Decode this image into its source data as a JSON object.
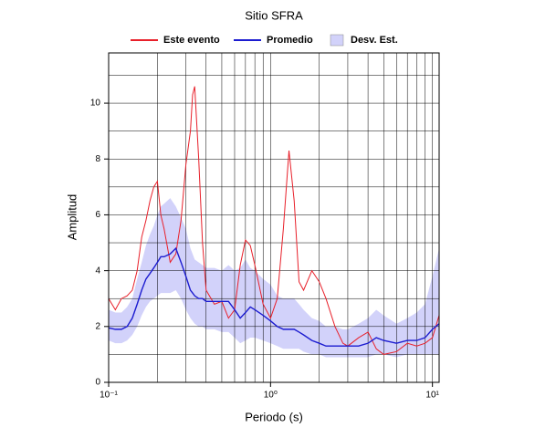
{
  "chart_data": {
    "type": "line",
    "title": "Sitio SFRA",
    "x_label": "Periodo (s)",
    "y_label": "Amplitud",
    "log_x": true,
    "grid": true,
    "legend": "top",
    "xlim": [
      0.1,
      11
    ],
    "ylim": [
      0,
      11.8
    ],
    "xticks": [
      {
        "value": 0.1,
        "label": "10⁻¹"
      },
      {
        "value": 1,
        "label": "10⁰"
      },
      {
        "value": 10,
        "label": "10¹"
      }
    ],
    "xminor": [
      0.2,
      0.3,
      0.4,
      0.5,
      0.6,
      0.7,
      0.8,
      0.9,
      2,
      3,
      4,
      5,
      6,
      7,
      8,
      9
    ],
    "yticks": [
      0,
      2,
      4,
      6,
      8,
      10
    ],
    "yminor": [
      1,
      3,
      5,
      7,
      9,
      11
    ],
    "x": [
      0.1,
      0.11,
      0.12,
      0.13,
      0.14,
      0.15,
      0.16,
      0.17,
      0.18,
      0.19,
      0.2,
      0.21,
      0.22,
      0.24,
      0.26,
      0.28,
      0.3,
      0.32,
      0.33,
      0.34,
      0.36,
      0.38,
      0.4,
      0.45,
      0.5,
      0.55,
      0.6,
      0.65,
      0.7,
      0.75,
      0.8,
      0.9,
      1.0,
      1.1,
      1.2,
      1.3,
      1.4,
      1.5,
      1.6,
      1.8,
      2.0,
      2.2,
      2.5,
      2.8,
      3.0,
      3.5,
      4.0,
      4.5,
      5.0,
      6.0,
      7.0,
      8.0,
      9.0,
      10.0,
      11.0
    ],
    "series": [
      {
        "name": "Este evento",
        "color": "#e8202a",
        "values": [
          3.0,
          2.6,
          3.0,
          3.1,
          3.3,
          4.0,
          5.2,
          5.8,
          6.5,
          7.0,
          7.2,
          6.0,
          5.5,
          4.3,
          4.6,
          5.8,
          7.8,
          9.0,
          10.3,
          10.6,
          8.0,
          5.0,
          3.3,
          2.8,
          2.9,
          2.3,
          2.6,
          4.2,
          5.1,
          4.9,
          4.2,
          2.8,
          2.3,
          3.0,
          5.5,
          8.3,
          6.5,
          3.6,
          3.3,
          4.0,
          3.6,
          3.0,
          2.0,
          1.4,
          1.3,
          1.6,
          1.8,
          1.2,
          1.0,
          1.1,
          1.4,
          1.3,
          1.4,
          1.6,
          2.4
        ]
      },
      {
        "name": "Promedio",
        "color": "#1c1cd0",
        "values": [
          1.95,
          1.9,
          1.9,
          2.0,
          2.3,
          2.8,
          3.3,
          3.7,
          3.9,
          4.1,
          4.3,
          4.5,
          4.5,
          4.6,
          4.8,
          4.3,
          3.8,
          3.3,
          3.2,
          3.1,
          3.0,
          3.0,
          2.9,
          2.9,
          2.9,
          2.9,
          2.6,
          2.3,
          2.5,
          2.7,
          2.6,
          2.4,
          2.2,
          2.0,
          1.9,
          1.9,
          1.9,
          1.8,
          1.7,
          1.5,
          1.4,
          1.3,
          1.3,
          1.3,
          1.3,
          1.3,
          1.4,
          1.6,
          1.5,
          1.4,
          1.5,
          1.5,
          1.6,
          1.9,
          2.1
        ]
      },
      {
        "name": "Desv. Est.",
        "color": "#d2d2fa",
        "upper": [
          2.6,
          2.5,
          2.5,
          2.7,
          3.0,
          3.7,
          4.3,
          4.9,
          5.3,
          5.6,
          6.0,
          6.3,
          6.4,
          6.6,
          6.3,
          5.9,
          5.5,
          4.8,
          4.6,
          4.4,
          4.3,
          4.2,
          4.1,
          4.1,
          4.0,
          4.2,
          4.0,
          4.1,
          4.4,
          4.1,
          4.0,
          3.7,
          3.5,
          3.1,
          3.0,
          3.0,
          3.0,
          2.8,
          2.6,
          2.3,
          2.2,
          2.0,
          2.0,
          1.9,
          1.9,
          2.1,
          2.3,
          2.6,
          2.4,
          2.1,
          2.3,
          2.5,
          2.8,
          3.8,
          4.8
        ],
        "lower": [
          1.5,
          1.4,
          1.4,
          1.5,
          1.7,
          2.0,
          2.4,
          2.7,
          2.9,
          3.0,
          3.1,
          3.2,
          3.2,
          3.2,
          3.3,
          3.0,
          2.6,
          2.3,
          2.2,
          2.1,
          2.0,
          2.0,
          1.9,
          1.9,
          1.8,
          1.8,
          1.6,
          1.4,
          1.5,
          1.6,
          1.6,
          1.5,
          1.4,
          1.3,
          1.2,
          1.2,
          1.2,
          1.2,
          1.1,
          1.0,
          1.0,
          0.9,
          0.9,
          0.9,
          0.9,
          0.9,
          0.9,
          1.0,
          1.0,
          0.9,
          1.0,
          1.0,
          1.0,
          1.0,
          1.0
        ]
      }
    ]
  }
}
